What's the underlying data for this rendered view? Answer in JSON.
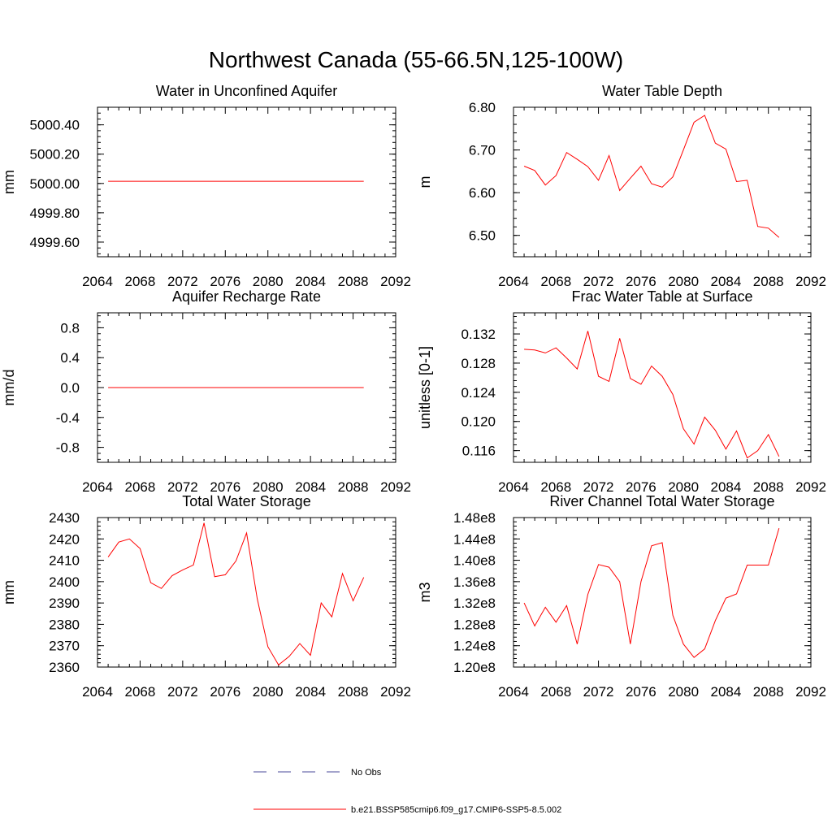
{
  "page_title": "Northwest Canada (55-66.5N,125-100W)",
  "colors": {
    "model": "#ff0000",
    "obs": "#4a4a9a",
    "axis": "#000000"
  },
  "legend": {
    "obs_label": "No Obs",
    "model_label": "b.e21.BSSP585cmip6.f09_g17.CMIP6-SSP5-8.5.002"
  },
  "chart_data": [
    {
      "type": "line",
      "title": "Water in Unconfined Aquifer",
      "xlabel": "",
      "ylabel": "mm",
      "xlim": [
        2064,
        2092
      ],
      "xticks": [
        2064,
        2068,
        2072,
        2076,
        2080,
        2084,
        2088,
        2092
      ],
      "ylim": [
        4999.5,
        5000.52
      ],
      "yticks": [
        4999.6,
        4999.8,
        5000.0,
        5000.2,
        5000.4
      ],
      "ytick_labels": [
        "4999.60",
        "4999.80",
        "5000.00",
        "5000.20",
        "5000.40"
      ],
      "series": [
        {
          "x": [
            2065,
            2066,
            2067,
            2068,
            2069,
            2070,
            2071,
            2072,
            2073,
            2074,
            2075,
            2076,
            2077,
            2078,
            2079,
            2080,
            2081,
            2082,
            2083,
            2084,
            2085,
            2086,
            2087,
            2088,
            2089
          ],
          "values": [
            5000.015,
            5000.015,
            5000.015,
            5000.015,
            5000.015,
            5000.015,
            5000.015,
            5000.015,
            5000.015,
            5000.015,
            5000.015,
            5000.015,
            5000.015,
            5000.015,
            5000.015,
            5000.015,
            5000.015,
            5000.015,
            5000.015,
            5000.015,
            5000.015,
            5000.015,
            5000.015,
            5000.015,
            5000.015
          ]
        }
      ]
    },
    {
      "type": "line",
      "title": "Water Table Depth",
      "xlabel": "",
      "ylabel": "m",
      "xlim": [
        2064,
        2092
      ],
      "xticks": [
        2064,
        2068,
        2072,
        2076,
        2080,
        2084,
        2088,
        2092
      ],
      "ylim": [
        6.45,
        6.8
      ],
      "yticks": [
        6.5,
        6.6,
        6.7,
        6.8
      ],
      "ytick_labels": [
        "6.50",
        "6.60",
        "6.70",
        "6.80"
      ],
      "series": [
        {
          "x": [
            2065,
            2066,
            2067,
            2068,
            2069,
            2070,
            2071,
            2072,
            2073,
            2074,
            2075,
            2076,
            2077,
            2078,
            2079,
            2080,
            2081,
            2082,
            2083,
            2084,
            2085,
            2086,
            2087,
            2088,
            2089
          ],
          "values": [
            6.662,
            6.652,
            6.618,
            6.64,
            6.694,
            6.678,
            6.661,
            6.629,
            6.687,
            6.605,
            6.634,
            6.662,
            6.621,
            6.613,
            6.637,
            6.7,
            6.765,
            6.781,
            6.716,
            6.702,
            6.626,
            6.629,
            6.521,
            6.517,
            6.495
          ]
        }
      ]
    },
    {
      "type": "line",
      "title": "Aquifer Recharge Rate",
      "xlabel": "",
      "ylabel": "mm/d",
      "xlim": [
        2064,
        2092
      ],
      "xticks": [
        2064,
        2068,
        2072,
        2076,
        2080,
        2084,
        2088,
        2092
      ],
      "ylim": [
        -1.0,
        1.0
      ],
      "yticks": [
        -0.8,
        -0.4,
        0.0,
        0.4,
        0.8
      ],
      "ytick_labels": [
        "-0.8",
        "-0.4",
        "0.0",
        "0.4",
        "0.8"
      ],
      "series": [
        {
          "x": [
            2065,
            2066,
            2067,
            2068,
            2069,
            2070,
            2071,
            2072,
            2073,
            2074,
            2075,
            2076,
            2077,
            2078,
            2079,
            2080,
            2081,
            2082,
            2083,
            2084,
            2085,
            2086,
            2087,
            2088,
            2089
          ],
          "values": [
            0,
            0,
            0,
            0,
            0,
            0,
            0,
            0,
            0,
            0,
            0,
            0,
            0,
            0,
            0,
            0,
            0,
            0,
            0,
            0,
            0,
            0,
            0,
            0,
            0
          ]
        }
      ]
    },
    {
      "type": "line",
      "title": "Frac Water Table at Surface",
      "xlabel": "",
      "ylabel": "unitless [0-1]",
      "xlim": [
        2064,
        2092
      ],
      "xticks": [
        2064,
        2068,
        2072,
        2076,
        2080,
        2084,
        2088,
        2092
      ],
      "ylim": [
        0.1144,
        0.1349
      ],
      "yticks": [
        0.116,
        0.12,
        0.124,
        0.128,
        0.132
      ],
      "ytick_labels": [
        "0.116",
        "0.120",
        "0.124",
        "0.128",
        "0.132"
      ],
      "series": [
        {
          "x": [
            2065,
            2066,
            2067,
            2068,
            2069,
            2070,
            2071,
            2072,
            2073,
            2074,
            2075,
            2076,
            2077,
            2078,
            2079,
            2080,
            2081,
            2082,
            2083,
            2084,
            2085,
            2086,
            2087,
            2088,
            2089
          ],
          "values": [
            0.1299,
            0.1298,
            0.1294,
            0.1301,
            0.1287,
            0.1272,
            0.1324,
            0.1262,
            0.1255,
            0.1314,
            0.1259,
            0.1251,
            0.1276,
            0.1262,
            0.1237,
            0.119,
            0.1169,
            0.1206,
            0.1188,
            0.1162,
            0.1187,
            0.115,
            0.116,
            0.1182,
            0.1152
          ]
        }
      ]
    },
    {
      "type": "line",
      "title": "Total Water Storage",
      "xlabel": "",
      "ylabel": "mm",
      "xlim": [
        2064,
        2092
      ],
      "xticks": [
        2064,
        2068,
        2072,
        2076,
        2080,
        2084,
        2088,
        2092
      ],
      "ylim": [
        2360,
        2430
      ],
      "yticks": [
        2360,
        2370,
        2380,
        2390,
        2400,
        2410,
        2420,
        2430
      ],
      "ytick_labels": [
        "2360",
        "2370",
        "2380",
        "2390",
        "2400",
        "2410",
        "2420",
        "2430"
      ],
      "series": [
        {
          "x": [
            2065,
            2066,
            2067,
            2068,
            2069,
            2070,
            2071,
            2072,
            2073,
            2074,
            2075,
            2076,
            2077,
            2078,
            2079,
            2080,
            2081,
            2082,
            2083,
            2084,
            2085,
            2086,
            2087,
            2088,
            2089
          ],
          "values": [
            2411.5,
            2418.5,
            2420.0,
            2415.5,
            2399.5,
            2396.8,
            2402.8,
            2405.5,
            2407.8,
            2427.5,
            2402.3,
            2403.2,
            2409.7,
            2422.8,
            2392.0,
            2369.5,
            2361.0,
            2365.0,
            2371.0,
            2365.5,
            2390.0,
            2383.5,
            2403.8,
            2391.0,
            2402.0
          ]
        }
      ]
    },
    {
      "type": "line",
      "title": "River Channel Total Water Storage",
      "xlabel": "",
      "ylabel": "m3",
      "xlim": [
        2064,
        2092
      ],
      "xticks": [
        2064,
        2068,
        2072,
        2076,
        2080,
        2084,
        2088,
        2092
      ],
      "ylim": [
        120000000.0,
        148000000.0
      ],
      "yticks": [
        120000000.0,
        124000000.0,
        128000000.0,
        132000000.0,
        136000000.0,
        140000000.0,
        144000000.0,
        148000000.0
      ],
      "ytick_labels": [
        "1.20e8",
        "1.24e8",
        "1.28e8",
        "1.32e8",
        "1.36e8",
        "1.40e8",
        "1.44e8",
        "1.48e8"
      ],
      "series": [
        {
          "x": [
            2065,
            2066,
            2067,
            2068,
            2069,
            2070,
            2071,
            2072,
            2073,
            2074,
            2075,
            2076,
            2077,
            2078,
            2079,
            2080,
            2081,
            2082,
            2083,
            2084,
            2085,
            2086,
            2087,
            2088,
            2089
          ],
          "values": [
            132000000.0,
            127700000.0,
            131200000.0,
            128400000.0,
            131500000.0,
            124300000.0,
            133600000.0,
            139200000.0,
            138700000.0,
            136000000.0,
            124300000.0,
            136000000.0,
            142700000.0,
            143300000.0,
            129700000.0,
            124300000.0,
            121800000.0,
            123400000.0,
            128700000.0,
            132900000.0,
            133700000.0,
            139100000.0,
            139100000.0,
            139100000.0,
            146000000.0
          ]
        }
      ]
    }
  ]
}
